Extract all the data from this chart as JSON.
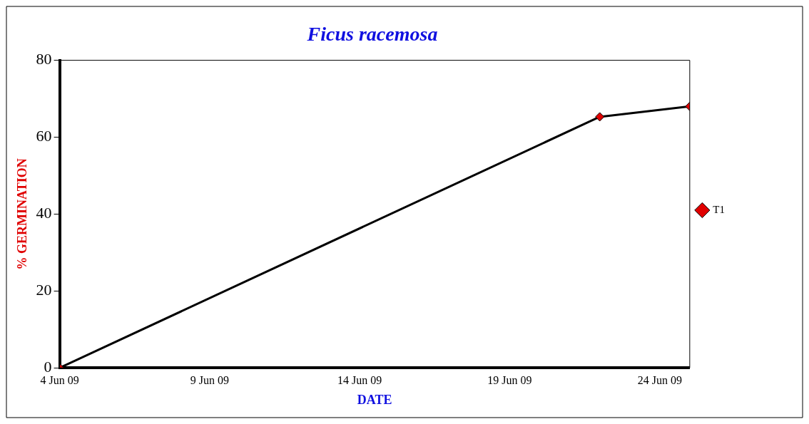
{
  "chart_data": {
    "type": "line",
    "title": "Ficus racemosa",
    "xlabel": "DATE",
    "ylabel": "% GERMINATION",
    "x": [
      "--06-04",
      "--06-22",
      "--06-25"
    ],
    "series": [
      {
        "name": "T1",
        "color": "#000000",
        "colors": [
          "#e00000",
          "#e00000",
          "#e00000"
        ],
        "values": [
          0,
          65.3,
          68
        ]
      }
    ],
    "xlim": [
      "--06-04",
      "--06-25"
    ],
    "xticks": [
      {
        "value": "--06-04",
        "label": "4 Jun 09"
      },
      {
        "value": "--06-09",
        "label": "9 Jun 09"
      },
      {
        "value": "--06-14",
        "label": "14 Jun 09"
      },
      {
        "value": "--06-19",
        "label": "19 Jun 09"
      },
      {
        "value": "--06-24",
        "label": "24 Jun 09"
      }
    ],
    "ylim": [
      0,
      80
    ],
    "yticks": [
      0,
      20,
      40,
      60,
      80
    ],
    "grid": false,
    "legend": "right",
    "marker": "diamond",
    "line_style": "solid"
  }
}
